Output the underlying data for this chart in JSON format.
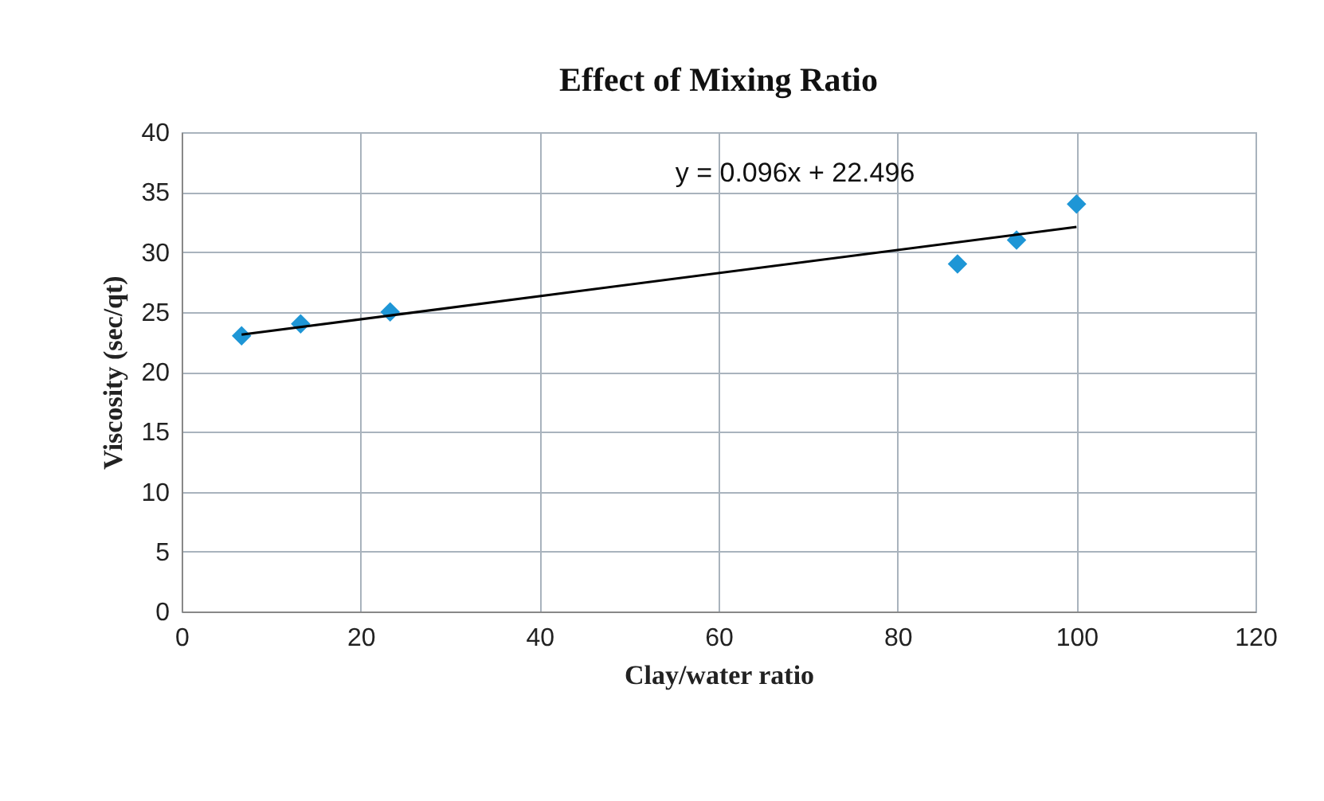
{
  "chart_data": {
    "type": "scatter",
    "title": "Effect of Mixing Ratio",
    "xlabel": "Clay/water ratio",
    "ylabel": "Viscosity (sec/qt)",
    "grid": true,
    "xlim": [
      0,
      120
    ],
    "xticks": [
      0,
      20,
      40,
      60,
      80,
      100,
      120
    ],
    "ylim": [
      0,
      40
    ],
    "yticks": [
      0,
      5,
      10,
      15,
      20,
      25,
      30,
      35,
      40
    ],
    "series": [
      {
        "color": "#1e96d6",
        "marker": "diamond",
        "x": [
          6.7,
          13.3,
          23.3,
          86.7,
          93.3,
          100
        ],
        "values": [
          23,
          24,
          25,
          29,
          31,
          34
        ]
      },
      {
        "type": "line",
        "marker": "none",
        "color": "#000000",
        "x": [
          6.7,
          100
        ],
        "values": [
          23.1,
          32.1
        ]
      }
    ],
    "annotations": [
      "y = 0.096x + 22.496"
    ]
  }
}
